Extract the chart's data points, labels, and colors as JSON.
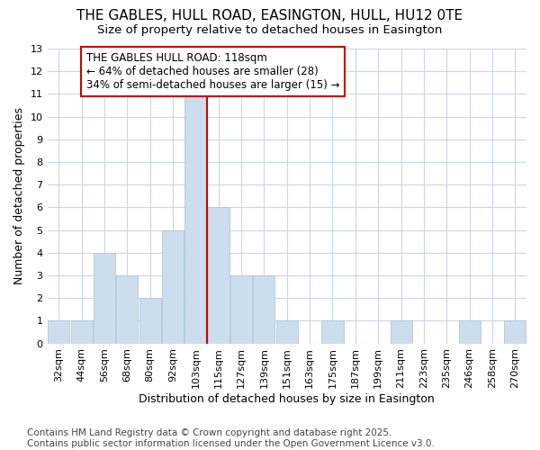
{
  "title": "THE GABLES, HULL ROAD, EASINGTON, HULL, HU12 0TE",
  "subtitle": "Size of property relative to detached houses in Easington",
  "xlabel": "Distribution of detached houses by size in Easington",
  "ylabel": "Number of detached properties",
  "categories": [
    "32sqm",
    "44sqm",
    "56sqm",
    "68sqm",
    "80sqm",
    "92sqm",
    "103sqm",
    "115sqm",
    "127sqm",
    "139sqm",
    "151sqm",
    "163sqm",
    "175sqm",
    "187sqm",
    "199sqm",
    "211sqm",
    "223sqm",
    "235sqm",
    "246sqm",
    "258sqm",
    "270sqm"
  ],
  "values": [
    1,
    1,
    4,
    3,
    2,
    5,
    11,
    6,
    3,
    3,
    1,
    0,
    1,
    0,
    0,
    1,
    0,
    0,
    1,
    0,
    1
  ],
  "bar_color": "#ccdded",
  "bar_edge_color": "#b0c8dc",
  "vline_x": 6.5,
  "vline_color": "#cc0000",
  "annotation_text": "THE GABLES HULL ROAD: 118sqm\n← 64% of detached houses are smaller (28)\n34% of semi-detached houses are larger (15) →",
  "annotation_box_color": "#ffffff",
  "annotation_box_edge_color": "#cc0000",
  "ylim": [
    0,
    13
  ],
  "yticks": [
    0,
    1,
    2,
    3,
    4,
    5,
    6,
    7,
    8,
    9,
    10,
    11,
    12,
    13
  ],
  "footer": "Contains HM Land Registry data © Crown copyright and database right 2025.\nContains public sector information licensed under the Open Government Licence v3.0.",
  "bg_color": "#ffffff",
  "plot_bg_color": "#ffffff",
  "grid_color": "#c8d8e8",
  "title_fontsize": 11,
  "subtitle_fontsize": 9.5,
  "axis_label_fontsize": 9,
  "tick_fontsize": 8,
  "footer_fontsize": 7.5,
  "annot_fontsize": 8.5
}
